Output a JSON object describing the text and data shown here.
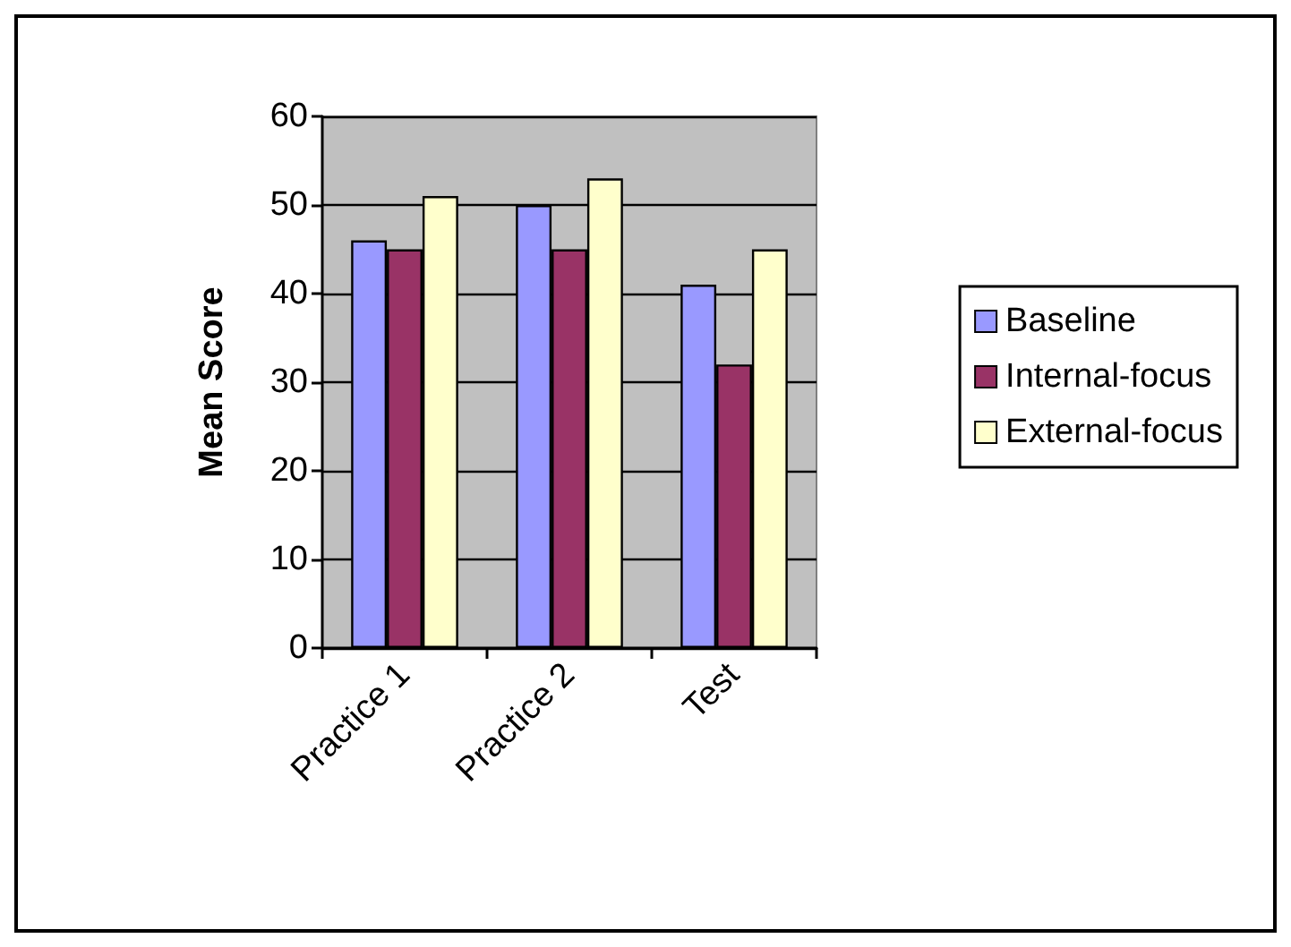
{
  "chart_data": {
    "type": "bar",
    "ylabel": "Mean Score",
    "categories": [
      "Practice 1",
      "Practice 2",
      "Test"
    ],
    "series": [
      {
        "name": "Baseline",
        "color": "#9999ff",
        "values": [
          46,
          50,
          41
        ]
      },
      {
        "name": "Internal-focus",
        "color": "#993366",
        "values": [
          45,
          45,
          32
        ]
      },
      {
        "name": "External-focus",
        "color": "#ffffcc",
        "values": [
          51,
          53,
          45
        ]
      }
    ],
    "ylim": [
      0,
      60
    ],
    "yticks": [
      0,
      10,
      20,
      30,
      40,
      50,
      60
    ],
    "grid": "y",
    "legend": "right"
  }
}
